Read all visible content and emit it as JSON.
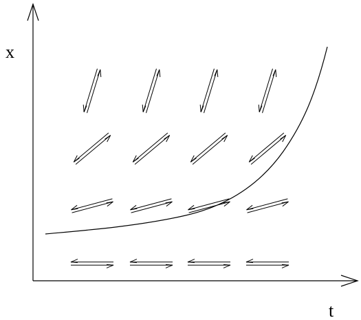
{
  "axes": {
    "x_label": "t",
    "y_label": "x"
  },
  "field": {
    "rows": [
      {
        "direction": "steep"
      },
      {
        "direction": "diagonal"
      },
      {
        "direction": "shallow"
      },
      {
        "direction": "horizontal"
      }
    ],
    "columns": 4,
    "style": "double-headed open arrows"
  },
  "curve": {
    "shape": "exponential growth"
  },
  "colors": {
    "ink": "#000000",
    "background": "#ffffff"
  }
}
